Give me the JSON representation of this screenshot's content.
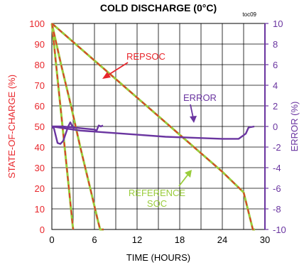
{
  "chart_data": {
    "type": "line",
    "title": "COLD DISCHARGE (0°C)",
    "figure_id": "toc09",
    "xlabel": "TIME (HOURS)",
    "ylabel_left": "STATE-OF-CHARGE (%)",
    "ylabel_right": "ERROR (%)",
    "xlim": [
      0,
      30
    ],
    "ylim_left": [
      0,
      100
    ],
    "ylim_right": [
      -10,
      10
    ],
    "grid": true,
    "x_ticks": [
      "0",
      "6",
      "12",
      "18",
      "24",
      "30"
    ],
    "y_left_ticks": [
      "0",
      "10",
      "20",
      "30",
      "40",
      "50",
      "60",
      "70",
      "80",
      "90",
      "100"
    ],
    "y_right_ticks": [
      "-10",
      "-8",
      "-6",
      "-4",
      "-2",
      "0",
      "2",
      "4",
      "6",
      "8",
      "10"
    ],
    "annotations": {
      "repsoc": "REPSOC",
      "error": "ERROR",
      "reference_line1": "REFERENCE",
      "reference_line2": "SOC"
    },
    "colors": {
      "repsoc": "#e8262b",
      "reference": "#9acd3c",
      "error": "#6a35a0",
      "axis": "#000000"
    },
    "series": [
      {
        "kind": "soc",
        "points": [
          [
            0,
            100
          ],
          [
            0.6,
            80
          ],
          [
            1.2,
            60
          ],
          [
            1.8,
            40
          ],
          [
            2.4,
            20
          ],
          [
            2.9,
            3
          ],
          [
            3.0,
            0
          ]
        ]
      },
      {
        "kind": "soc",
        "points": [
          [
            0,
            100
          ],
          [
            1.3,
            80
          ],
          [
            2.7,
            60
          ],
          [
            4.0,
            40
          ],
          [
            5.4,
            20
          ],
          [
            6.5,
            4
          ],
          [
            6.8,
            0
          ],
          [
            7.3,
            0
          ]
        ]
      },
      {
        "kind": "soc",
        "points": [
          [
            0,
            100
          ],
          [
            5,
            85
          ],
          [
            10,
            70
          ],
          [
            15,
            55
          ],
          [
            20,
            40
          ],
          [
            24,
            28
          ],
          [
            27,
            18
          ],
          [
            28.3,
            0
          ],
          [
            28.6,
            0
          ]
        ]
      },
      {
        "kind": "error",
        "points": [
          [
            0,
            0
          ],
          [
            0.3,
            -0.2
          ],
          [
            0.8,
            -1.6
          ],
          [
            1.2,
            -1.7
          ],
          [
            1.6,
            -1.4
          ],
          [
            2.0,
            -0.6
          ],
          [
            2.3,
            0
          ],
          [
            2.6,
            0.4
          ],
          [
            2.9,
            0
          ],
          [
            3.2,
            -0.2
          ]
        ]
      },
      {
        "kind": "error",
        "points": [
          [
            0,
            0
          ],
          [
            1.5,
            0
          ],
          [
            3,
            -0.1
          ],
          [
            4.5,
            -0.2
          ],
          [
            6,
            -0.3
          ],
          [
            6.3,
            -0.4
          ],
          [
            6.6,
            0.1
          ],
          [
            6.9,
            0.0
          ],
          [
            7.2,
            0.1
          ]
        ]
      },
      {
        "kind": "error",
        "points": [
          [
            0,
            0
          ],
          [
            4,
            -0.4
          ],
          [
            8,
            -0.6
          ],
          [
            12,
            -0.8
          ],
          [
            16,
            -1.0
          ],
          [
            20,
            -1.1
          ],
          [
            24,
            -1.2
          ],
          [
            26.3,
            -1.2
          ],
          [
            27.3,
            -0.7
          ],
          [
            27.7,
            -0.1
          ],
          [
            28.5,
            0
          ]
        ]
      }
    ]
  }
}
